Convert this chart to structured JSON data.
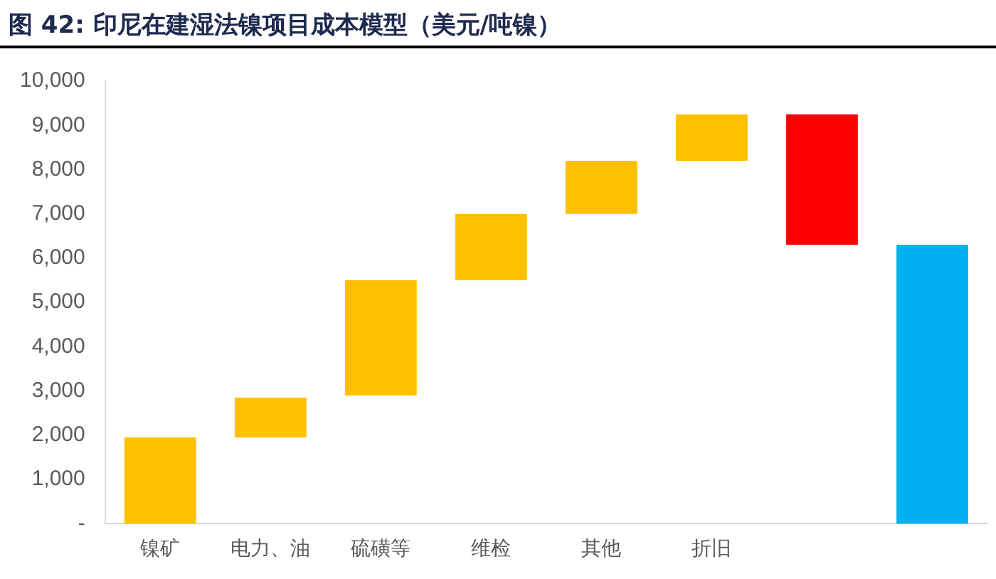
{
  "chart_data": {
    "type": "bar",
    "title": "图 42: 印尼在建湿法镍项目成本模型（美元/吨镍）",
    "categories": [
      "镍矿",
      "电力、油",
      "硫磺等",
      "维检",
      "其他",
      "折旧",
      null,
      null
    ],
    "values": [
      1950,
      900,
      2600,
      1500,
      1200,
      1050,
      -2950,
      6300
    ],
    "base": [
      0,
      1950,
      2900,
      5500,
      7000,
      8200,
      9250,
      0
    ],
    "colors": [
      "#ffc000",
      "#ffc000",
      "#ffc000",
      "#ffc000",
      "#ffc000",
      "#ffc000",
      "#ff0000",
      "#00b0f0"
    ],
    "ylim": [
      0,
      10000
    ],
    "yticks": [
      {
        "value": 0,
        "label": "-"
      },
      {
        "value": 1000,
        "label": "1,000"
      },
      {
        "value": 2000,
        "label": "2,000"
      },
      {
        "value": 3000,
        "label": "3,000"
      },
      {
        "value": 4000,
        "label": "4,000"
      },
      {
        "value": 5000,
        "label": "5,000"
      },
      {
        "value": 6000,
        "label": "6,000"
      },
      {
        "value": 7000,
        "label": "7,000"
      },
      {
        "value": 8000,
        "label": "8,000"
      },
      {
        "value": 9000,
        "label": "9,000"
      },
      {
        "value": 10000,
        "label": "10,000"
      }
    ],
    "grid": false,
    "legend": false
  }
}
